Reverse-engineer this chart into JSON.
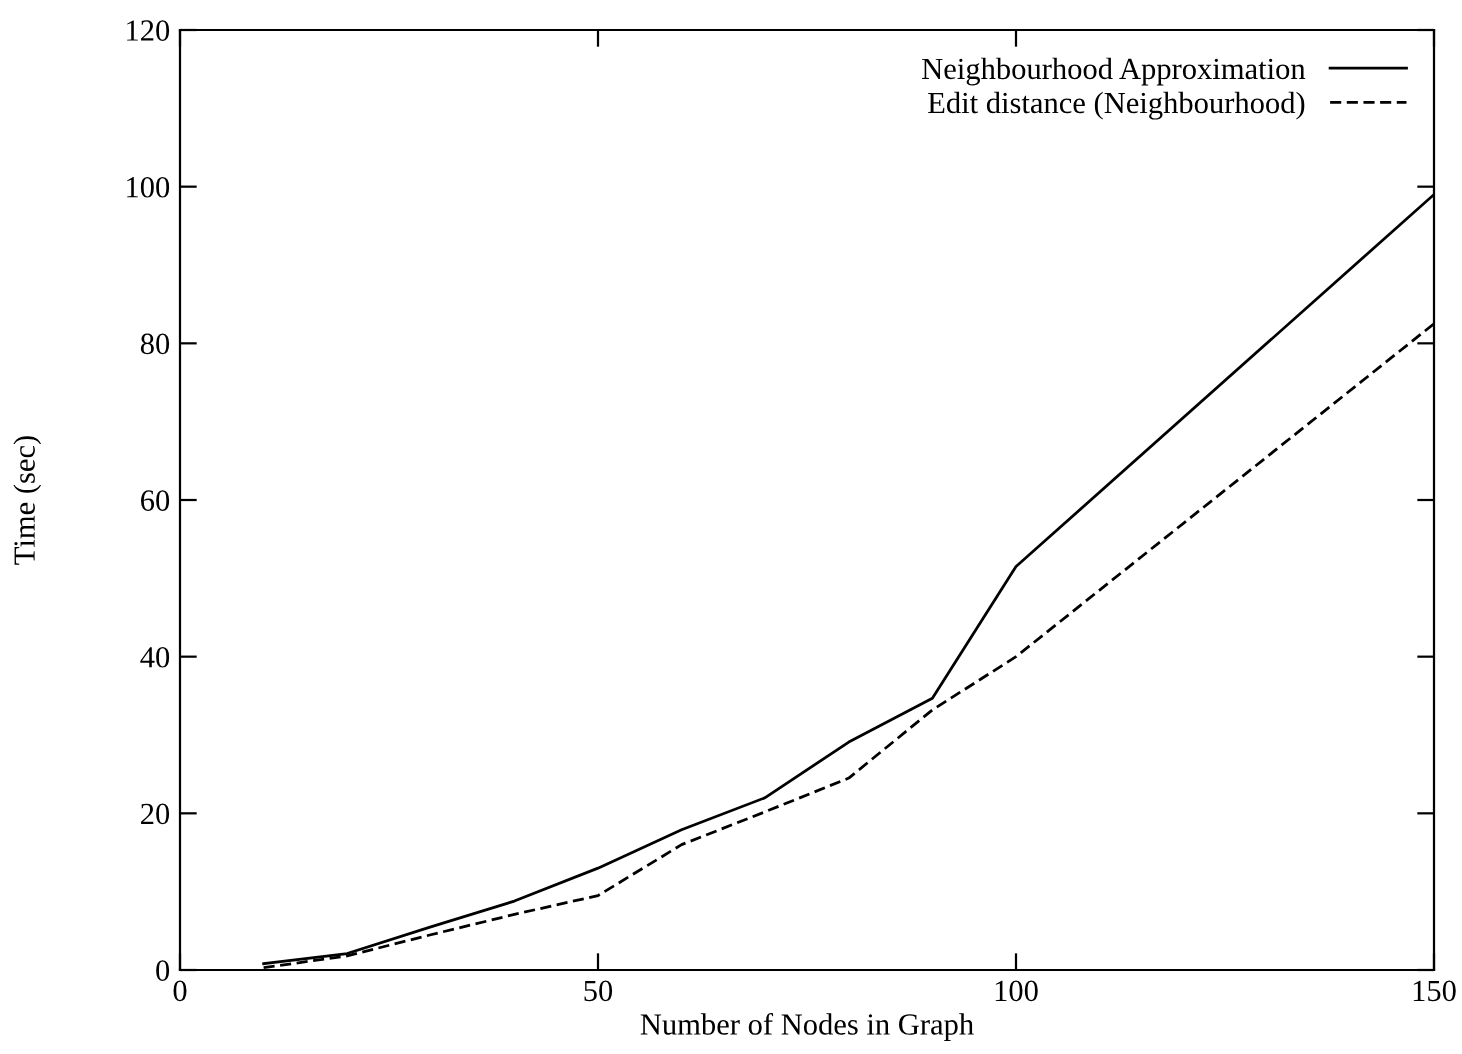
{
  "chart_data": {
    "type": "line",
    "xlabel": "Number of Nodes in Graph",
    "ylabel": "Time (sec)",
    "x": [
      10,
      20,
      30,
      40,
      50,
      60,
      70,
      80,
      90,
      100,
      150
    ],
    "series": [
      {
        "name": "Neighbourhood Approximation",
        "color": "#000000",
        "line_style": "solid",
        "values": [
          0.8,
          2.1,
          5.5,
          8.8,
          13,
          17.9,
          22,
          29.1,
          34.7,
          51.5,
          99
        ]
      },
      {
        "name": "Edit distance (Neighbourhood)",
        "color": "#000000",
        "line_style": "dashed",
        "values": [
          0.3,
          1.8,
          4.5,
          7.1,
          9.5,
          16,
          20.2,
          24.5,
          33.2,
          40,
          82.5
        ]
      }
    ],
    "xlim": [
      0,
      150
    ],
    "ylim": [
      0,
      120
    ],
    "xticks": [
      0,
      50,
      100,
      150
    ],
    "yticks": [
      0,
      20,
      40,
      60,
      80,
      100,
      120
    ],
    "grid": false,
    "legend": "top right",
    "marker": "none"
  }
}
